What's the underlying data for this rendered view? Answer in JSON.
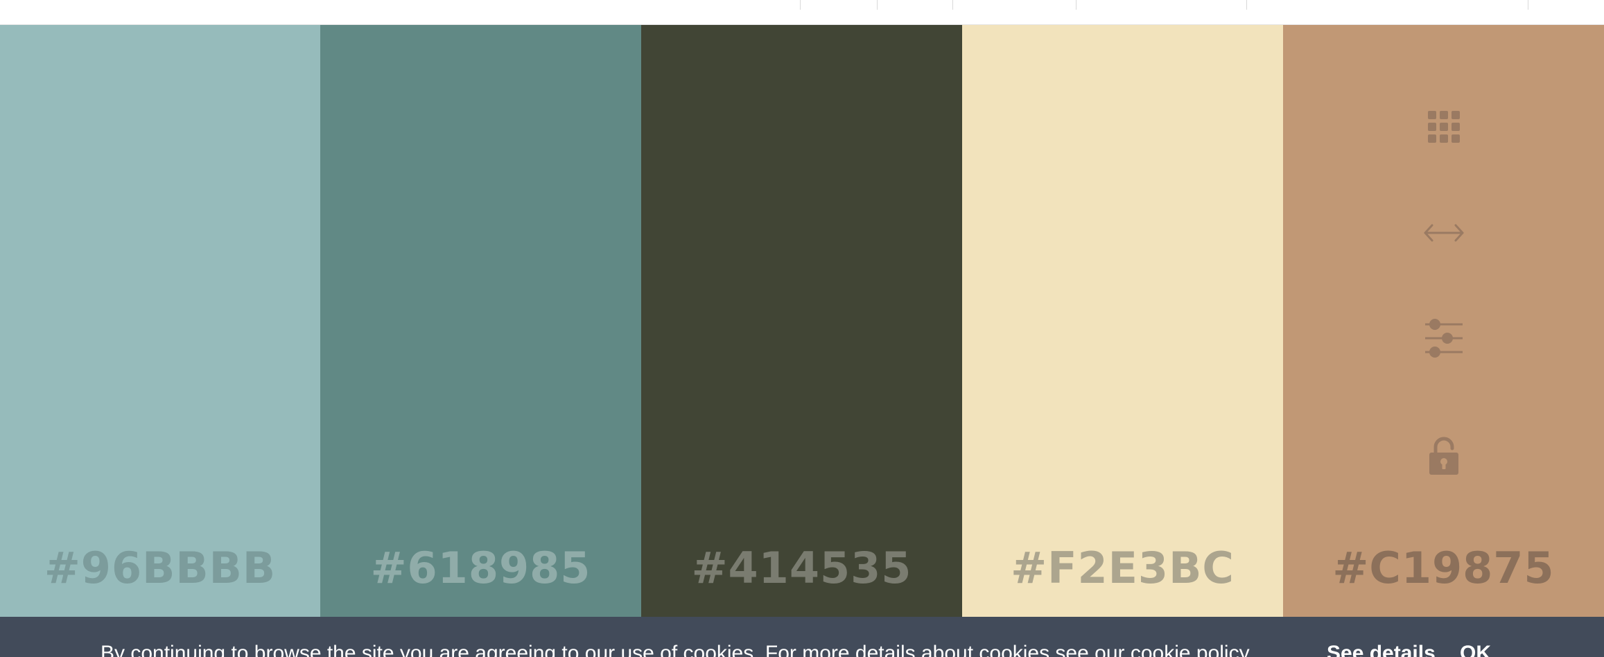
{
  "palette": {
    "colors": [
      {
        "hex": "#96BBBB",
        "background": "#96BBBB",
        "label_color": "#7C9C9C"
      },
      {
        "hex": "#618985",
        "background": "#618985",
        "label_color": "#90ACA9"
      },
      {
        "hex": "#414535",
        "background": "#414535",
        "label_color": "#7A7C70"
      },
      {
        "hex": "#F2E3BC",
        "background": "#F2E3BC",
        "label_color": "#ACA58E"
      },
      {
        "hex": "#C19875",
        "background": "#C19875",
        "label_color": "#8C705A"
      }
    ],
    "toolbar_icons": [
      "grid-icon",
      "drag-arrows-icon",
      "sliders-icon",
      "lock-icon"
    ],
    "icon_color": "#9A7A62"
  },
  "cookie_banner": {
    "message": "By continuing to browse the site you are agreeing to our use of cookies. For more details about cookies see our cookie policy.",
    "details_label": "See details",
    "ok_label": "OK",
    "background": "#424B5A"
  }
}
